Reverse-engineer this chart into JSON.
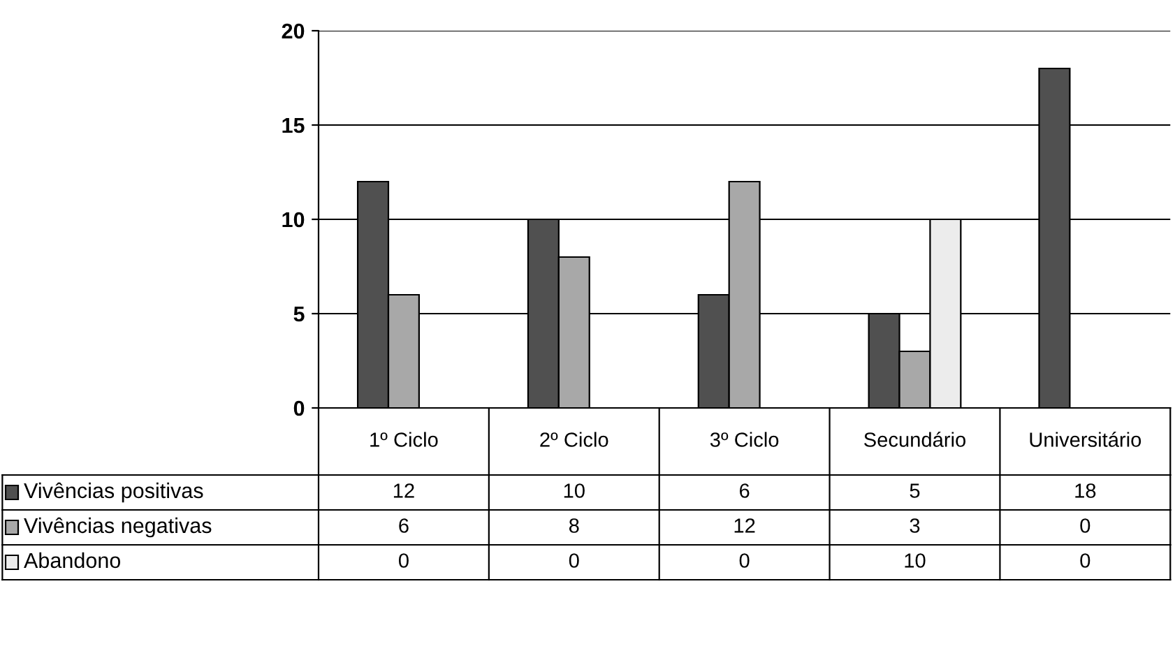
{
  "chart_data": {
    "type": "bar",
    "categories": [
      "1º Ciclo",
      "2º Ciclo",
      "3º Ciclo",
      "Secundário",
      "Universitário"
    ],
    "series": [
      {
        "name": "Vivências positivas",
        "color": "#505050",
        "values": [
          12,
          10,
          6,
          5,
          18
        ]
      },
      {
        "name": "Vivências negativas",
        "color": "#a8a8a8",
        "values": [
          6,
          8,
          12,
          3,
          0
        ]
      },
      {
        "name": "Abandono",
        "color": "#ececec",
        "values": [
          0,
          0,
          0,
          10,
          0
        ]
      }
    ],
    "ylim": [
      0,
      20
    ],
    "yticks": [
      0,
      5,
      10,
      15,
      20
    ],
    "grid": "y",
    "legend": "bottom",
    "data_labels": true
  }
}
